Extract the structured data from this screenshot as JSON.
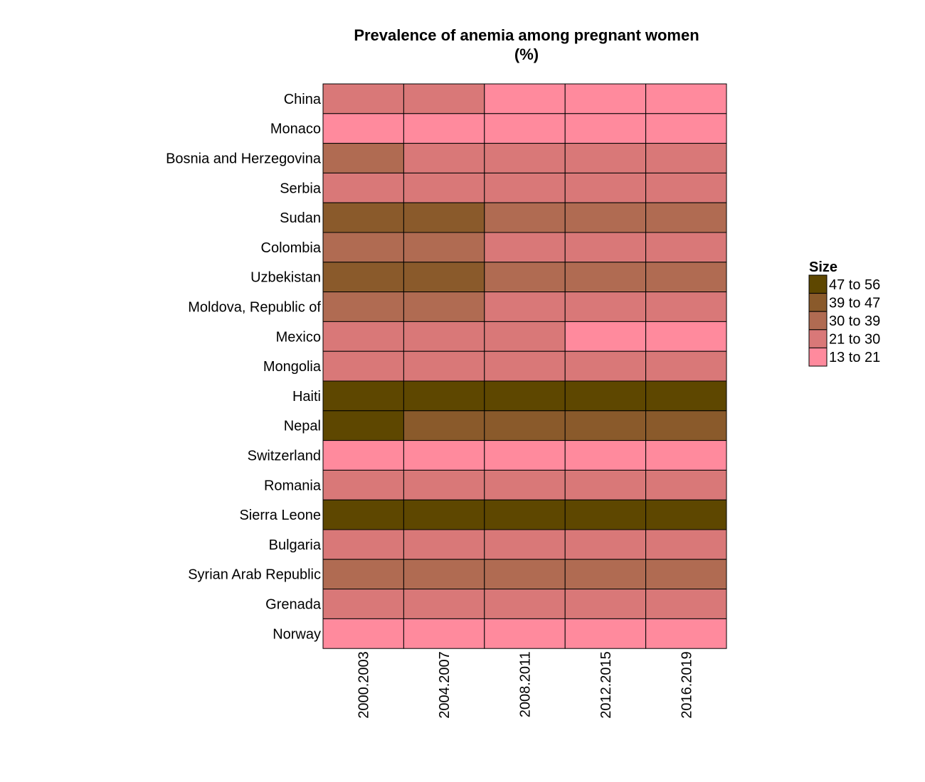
{
  "chart_data": {
    "type": "heatmap",
    "title_lines": [
      "Prevalence of anemia among pregnant women",
      "(%)"
    ],
    "columns": [
      "2000.2003",
      "2004.2007",
      "2008.2011",
      "2012.2015",
      "2016.2019"
    ],
    "rows": [
      "China",
      "Monaco",
      "Bosnia and Herzegovina",
      "Serbia",
      "Sudan",
      "Colombia",
      "Uzbekistan",
      "Moldova, Republic of",
      "Mexico",
      "Mongolia",
      "Haiti",
      "Nepal",
      "Switzerland",
      "Romania",
      "Sierra Leone",
      "Bulgaria",
      "Syrian Arab Republic",
      "Grenada",
      "Norway"
    ],
    "category_matrix": [
      [
        3,
        3,
        4,
        4,
        4
      ],
      [
        4,
        4,
        4,
        4,
        4
      ],
      [
        2,
        3,
        3,
        3,
        3
      ],
      [
        3,
        3,
        3,
        3,
        3
      ],
      [
        1,
        1,
        2,
        2,
        2
      ],
      [
        2,
        2,
        3,
        3,
        3
      ],
      [
        1,
        1,
        2,
        2,
        2
      ],
      [
        2,
        2,
        3,
        3,
        3
      ],
      [
        3,
        3,
        3,
        4,
        4
      ],
      [
        3,
        3,
        3,
        3,
        3
      ],
      [
        0,
        0,
        0,
        0,
        0
      ],
      [
        0,
        1,
        1,
        1,
        1
      ],
      [
        4,
        4,
        4,
        4,
        4
      ],
      [
        3,
        3,
        3,
        3,
        3
      ],
      [
        0,
        0,
        0,
        0,
        0
      ],
      [
        3,
        3,
        3,
        3,
        3
      ],
      [
        2,
        2,
        2,
        2,
        2
      ],
      [
        3,
        3,
        3,
        3,
        3
      ],
      [
        4,
        4,
        4,
        4,
        4
      ]
    ],
    "legend": {
      "title": "Size",
      "placement": "right",
      "bins": [
        {
          "label": "47 to 56",
          "color": "#5e4700"
        },
        {
          "label": "39 to 47",
          "color": "#8a5a2b"
        },
        {
          "label": "30 to 39",
          "color": "#b06b52"
        },
        {
          "label": "21 to 30",
          "color": "#d97878"
        },
        {
          "label": "13 to 21",
          "color": "#ff8a9d"
        }
      ]
    }
  }
}
